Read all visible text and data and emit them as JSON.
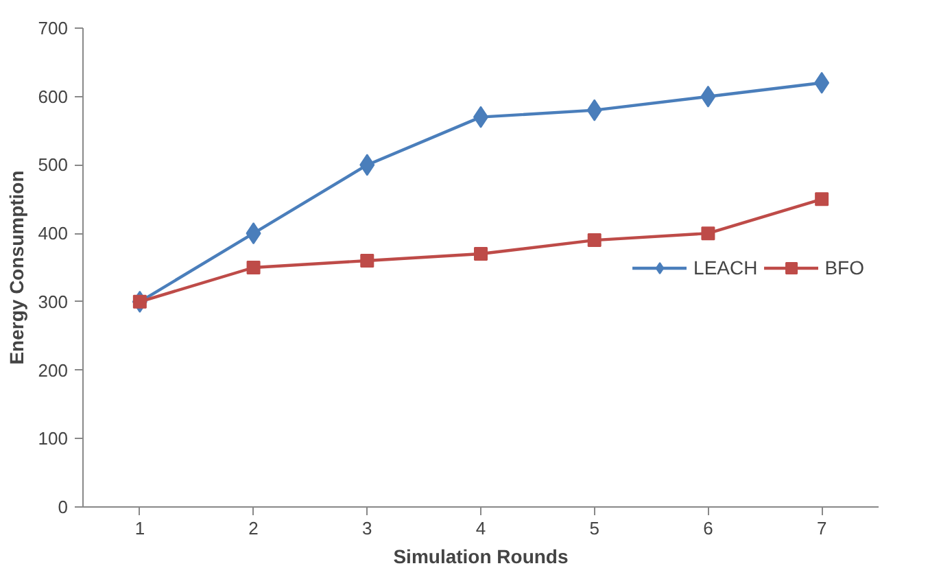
{
  "chart_data": {
    "type": "line",
    "xlabel": "Simulation Rounds",
    "ylabel": "Energy Consumption",
    "categories": [
      "1",
      "2",
      "3",
      "4",
      "5",
      "6",
      "7"
    ],
    "series": [
      {
        "name": "LEACH",
        "color": "#4a7ebb",
        "marker": "diamond",
        "values": [
          300,
          400,
          500,
          570,
          580,
          600,
          620
        ]
      },
      {
        "name": "BFO",
        "color": "#be4b48",
        "marker": "square",
        "values": [
          300,
          350,
          360,
          370,
          390,
          400,
          450
        ]
      }
    ],
    "ylim": [
      0,
      700
    ],
    "yticks": [
      0,
      100,
      200,
      300,
      400,
      500,
      600,
      700
    ],
    "grid": false,
    "legend": "right",
    "line_style": "solid"
  }
}
